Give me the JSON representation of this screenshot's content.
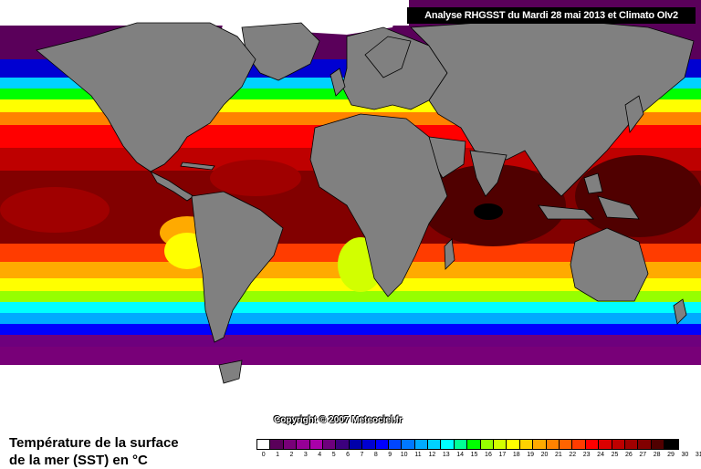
{
  "header": {
    "title": "Analyse RHGSST du Mardi 28 mai 2013 et Climato OIv2"
  },
  "map": {
    "copyright": "Copyright © 2007 Meteociel.fr",
    "land_color": "#808080",
    "ice_color": "#ffffff"
  },
  "legend": {
    "title_line1": "Température de la surface",
    "title_line2": "de la mer (SST) en °C",
    "labels": [
      "0",
      "1",
      "2",
      "3",
      "4",
      "5",
      "6",
      "7",
      "8",
      "9",
      "10",
      "11",
      "12",
      "13",
      "14",
      "15",
      "16",
      "17",
      "18",
      "19",
      "20",
      "21",
      "22",
      "23",
      "24",
      "25",
      "26",
      "27",
      "28",
      "29",
      "30",
      "31"
    ],
    "colors": [
      "#ffffff",
      "#5a005a",
      "#780078",
      "#960096",
      "#aa00aa",
      "#6e007d",
      "#3c007d",
      "#0000aa",
      "#0000d2",
      "#0000ff",
      "#0046ff",
      "#0078ff",
      "#00aaff",
      "#00d2ff",
      "#00ffff",
      "#00ff96",
      "#00ff00",
      "#96ff00",
      "#d2ff00",
      "#ffff00",
      "#ffd200",
      "#ffaa00",
      "#ff8200",
      "#ff6400",
      "#ff3c00",
      "#ff0000",
      "#dc0000",
      "#be0000",
      "#a00000",
      "#820000",
      "#500000",
      "#000000"
    ]
  }
}
